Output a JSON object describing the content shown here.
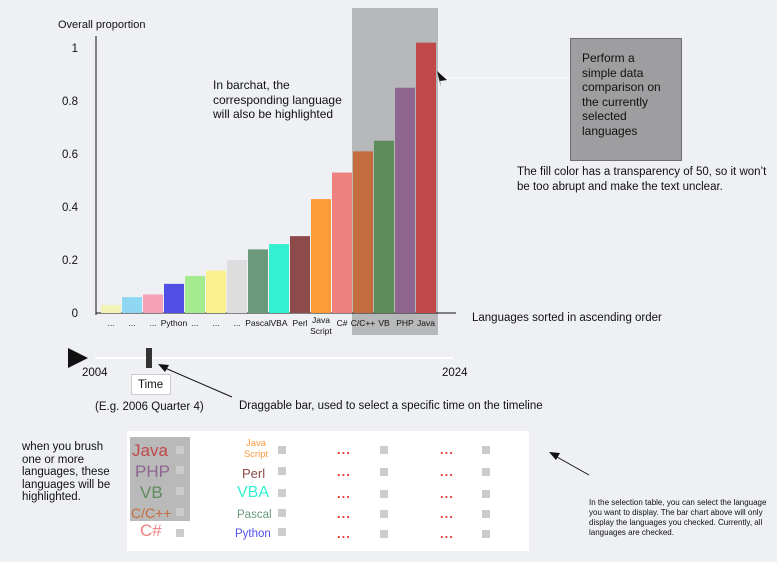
{
  "chart_data": {
    "type": "bar",
    "ylabel": "Overall proportion",
    "xlabel": "Languages sorted in ascending order",
    "ylim": [
      0,
      1
    ],
    "yticks": [
      "0",
      "0.2",
      "0.4",
      "0.6",
      "0.8",
      "1"
    ],
    "categories": [
      "...",
      "...",
      "...",
      "Python",
      "...",
      "...",
      "...",
      "Pascal",
      "VBA",
      "Perl",
      "Java Script",
      "C#",
      "C/C++",
      "VB",
      "PHP",
      "Java"
    ],
    "values": [
      0.03,
      0.06,
      0.07,
      0.11,
      0.14,
      0.16,
      0.2,
      0.24,
      0.26,
      0.29,
      0.43,
      0.53,
      0.61,
      0.65,
      0.85,
      1.02
    ],
    "colors": [
      "#f3f3b8",
      "#8fd7f3",
      "#f7a1b8",
      "#4f4fe6",
      "#a4ea8e",
      "#fbf08e",
      "#dddddd",
      "#6a9a7b",
      "#34f0d0",
      "#8d4a4a",
      "#fd9a3a",
      "#ef8080",
      "#c36d3f",
      "#5e8c5a",
      "#8e6690",
      "#c0484b"
    ],
    "highlight_color": "#808080",
    "highlight_transparency": "50"
  },
  "notes": {
    "barchart": "In barchat, the corresponding language will also be highlighted",
    "compare": "Perform a simple data comparison on the currently selected languages",
    "fill": "The fill color has a transparency of 50, so it won’t be too abrupt and make the text unclear.",
    "brush": "when you brush one or more languages, these languages will be highlighted.",
    "drag": "Draggable bar, used to select a specific time on the timeline",
    "table": "In the selection table, you can select the language you want to display. The bar chart above will only display the languages you checked. Currently, all languages are checked."
  },
  "timeline": {
    "start": "2004",
    "end": "2024",
    "handle_label": "Time",
    "example": "(E.g. 2006 Quarter 4)",
    "position": 0.15
  },
  "selection_table": {
    "col1": [
      {
        "label": "Java",
        "color": "#c0484b"
      },
      {
        "label": "PHP",
        "color": "#8e6690"
      },
      {
        "label": "VB",
        "color": "#5e8c5a"
      },
      {
        "label": "C/C++",
        "color": "#c36d3f"
      },
      {
        "label": "C#",
        "color": "#ef8080"
      }
    ],
    "col2": [
      {
        "label": "Java\nScript",
        "color": "#fd9a3a"
      },
      {
        "label": "Perl",
        "color": "#8d4a4a"
      },
      {
        "label": "VBA",
        "color": "#34f0d0"
      },
      {
        "label": "Pascal",
        "color": "#6a9a7b"
      },
      {
        "label": "Python",
        "color": "#4f4fe6"
      }
    ],
    "ellipsis": "..."
  }
}
